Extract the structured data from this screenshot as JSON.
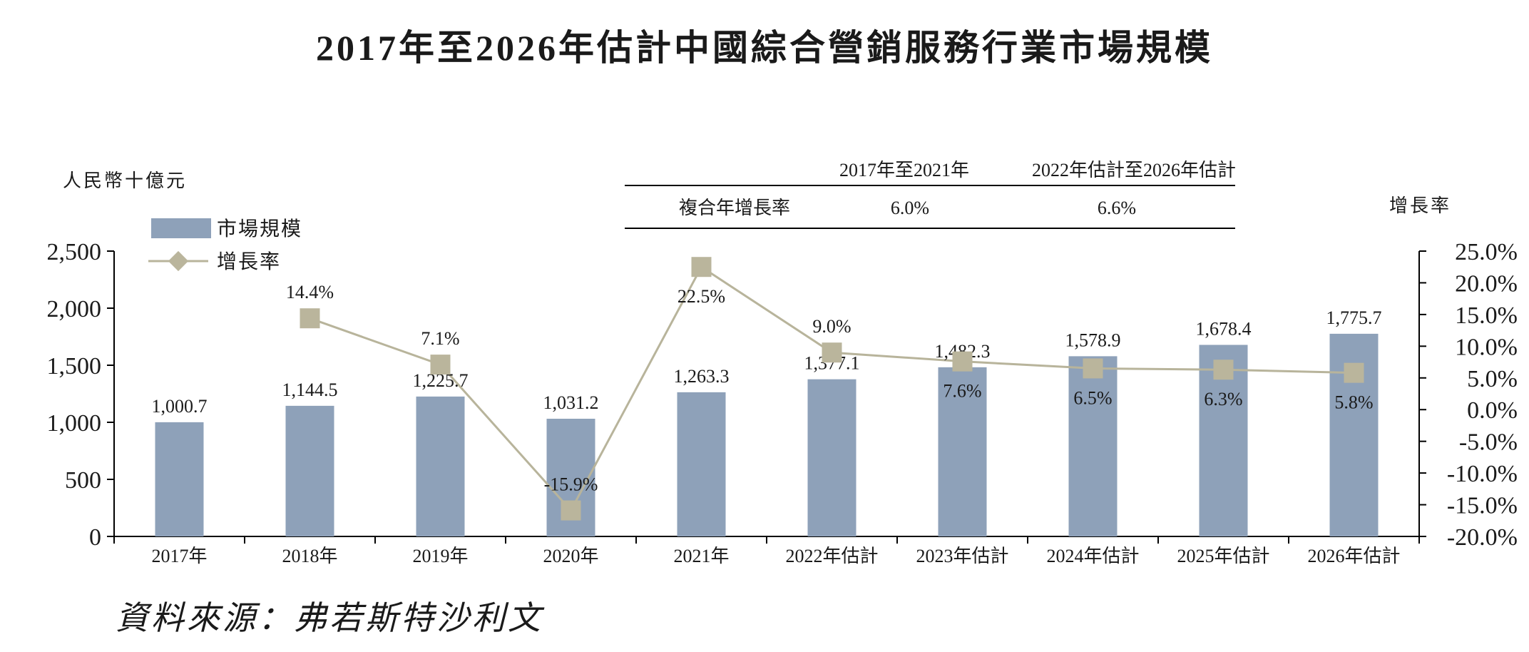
{
  "title": "2017年至2026年估計中國綜合營銷服務行業市場規模",
  "source": "資料來源：弗若斯特沙利文",
  "colors": {
    "bar": "#8ea1b9",
    "line": "#b8b49b",
    "marker": "#bab59c",
    "axis": "#000000"
  },
  "cagr_table": {
    "period_headers": [
      "2017年至2021年",
      "2022年估計至2026年估計"
    ],
    "row_label": "複合年增長率",
    "values": [
      "6.0%",
      "6.6%"
    ]
  },
  "chart_data": {
    "type": "bar+line",
    "categories": [
      "2017年",
      "2018年",
      "2019年",
      "2020年",
      "2021年",
      "2022年估計",
      "2023年估計",
      "2024年估計",
      "2025年估計",
      "2026年估計"
    ],
    "series": [
      {
        "name": "市場規模",
        "type": "bar",
        "axis": "left",
        "values": [
          1000.7,
          1144.5,
          1225.7,
          1031.2,
          1263.3,
          1377.1,
          1482.3,
          1578.9,
          1678.4,
          1775.7
        ],
        "labels": [
          "1,000.7",
          "1,144.5",
          "1,225.7",
          "1,031.2",
          "1,263.3",
          "1,377.1",
          "1,482.3",
          "1,578.9",
          "1,678.4",
          "1,775.7"
        ]
      },
      {
        "name": "增長率",
        "type": "line",
        "axis": "right",
        "values": [
          null,
          14.4,
          7.1,
          -15.9,
          22.5,
          9.0,
          7.6,
          6.5,
          6.3,
          5.8
        ],
        "labels": [
          "",
          "14.4%",
          "7.1%",
          "-15.9%",
          "22.5%",
          "9.0%",
          "7.6%",
          "6.5%",
          "6.3%",
          "5.8%"
        ]
      }
    ],
    "y_left": {
      "label": "人民幣十億元",
      "ylim": [
        0,
        2500
      ],
      "ticks": [
        0,
        500,
        1000,
        1500,
        2000,
        2500
      ],
      "tick_labels": [
        "0",
        "500",
        "1,000",
        "1,500",
        "2,000",
        "2,500"
      ]
    },
    "y_right": {
      "label": "增長率",
      "ylim": [
        -20,
        25
      ],
      "ticks": [
        -20,
        -15,
        -10,
        -5,
        0,
        5,
        10,
        15,
        20,
        25
      ],
      "tick_labels": [
        "-20.0%",
        "-15.0%",
        "-10.0%",
        "-5.0%",
        "0.0%",
        "5.0%",
        "10.0%",
        "15.0%",
        "20.0%",
        "25.0%"
      ]
    },
    "grid": false,
    "legend": "top-left"
  }
}
